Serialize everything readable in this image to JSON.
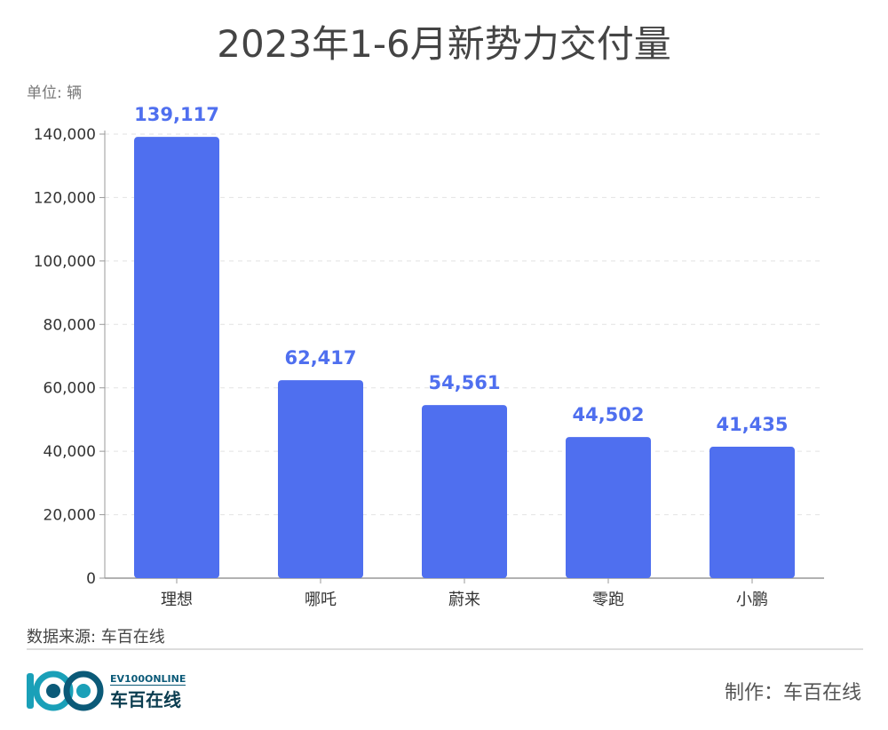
{
  "chart_data": {
    "type": "bar",
    "title": "2023年1-6月新势力交付量",
    "unit_label": "单位: 辆",
    "categories": [
      "理想",
      "哪吒",
      "蔚来",
      "零跑",
      "小鹏"
    ],
    "values": [
      139117,
      62417,
      54561,
      44502,
      41435
    ],
    "value_labels": [
      "139,117",
      "62,417",
      "54,561",
      "44,502",
      "41,435"
    ],
    "ylim": [
      0,
      140000
    ],
    "yticks": [
      0,
      20000,
      40000,
      60000,
      80000,
      100000,
      120000,
      140000
    ],
    "ytick_labels": [
      "0",
      "20,000",
      "40,000",
      "60,000",
      "80,000",
      "100,000",
      "120,000",
      "140,000"
    ],
    "grid": true,
    "xlabel": "",
    "ylabel": "",
    "bar_color": "#4f6fef",
    "label_color": "#4f6fef"
  },
  "footer": {
    "source": "数据来源: 车百在线",
    "maker": "制作：车百在线"
  },
  "logo": {
    "en": "EV100ONLINE",
    "cn": "车百在线",
    "colors": [
      "#1aa0b8",
      "#0b5a78"
    ]
  }
}
